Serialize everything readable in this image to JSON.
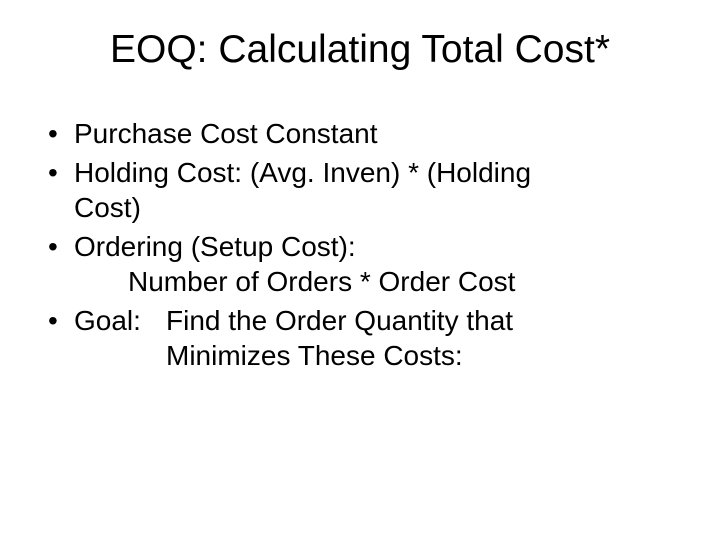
{
  "slide": {
    "title": "EOQ: Calculating Total Cost*",
    "bullets": [
      {
        "line1": "Purchase Cost Constant"
      },
      {
        "line1": "Holding Cost:  (Avg. Inven) * (Holding",
        "line2": "Cost)"
      },
      {
        "line1": "Ordering (Setup Cost):",
        "sub": "Number of Orders * Order Cost"
      },
      {
        "label": "Goal:",
        "line1": "Find the Order Quantity that",
        "line2": "Minimizes These Costs:"
      }
    ]
  },
  "style": {
    "background_color": "#ffffff",
    "text_color": "#000000",
    "title_fontsize": 39,
    "body_fontsize": 28,
    "font_family": "Arial"
  }
}
